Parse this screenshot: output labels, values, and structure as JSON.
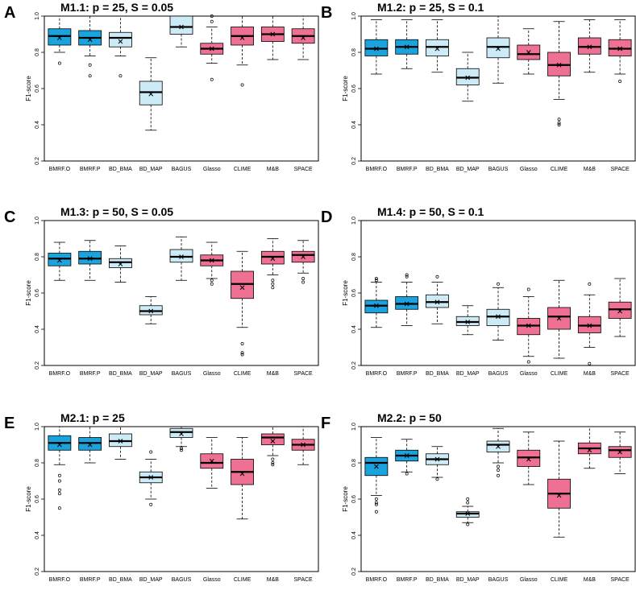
{
  "figure": {
    "colors": {
      "dark_blue": "#1BA3DE",
      "light_blue": "#CDEBF7",
      "pink": "#EE7193",
      "stroke": "#000000",
      "background": "#ffffff"
    },
    "box_color_keys": [
      "dark_blue",
      "dark_blue",
      "light_blue",
      "light_blue",
      "light_blue",
      "pink",
      "pink",
      "pink",
      "pink"
    ]
  },
  "chart_data": [
    {
      "panel": "A",
      "title": "M1.1: p = 25, S = 0.05",
      "type": "boxplot",
      "ylabel": "F1-score",
      "ylim": [
        0.2,
        1.0
      ],
      "yticks": [
        "0.2",
        "0.4",
        "0.6",
        "0.8",
        "1.0"
      ],
      "categories": [
        "BMRF.O",
        "BMRF.P",
        "BD_BMA",
        "BD_MAP",
        "BAGUS",
        "Glasso",
        "CLIME",
        "M&B",
        "SPACE"
      ],
      "boxes": [
        {
          "lw": 0.8,
          "q1": 0.84,
          "median": 0.89,
          "q3": 0.93,
          "uw": 1.0,
          "mean": 0.88,
          "outliers": [
            0.74
          ]
        },
        {
          "lw": 0.78,
          "q1": 0.84,
          "median": 0.88,
          "q3": 0.92,
          "uw": 1.0,
          "mean": 0.87,
          "outliers": [
            0.73,
            0.67
          ]
        },
        {
          "lw": 0.78,
          "q1": 0.83,
          "median": 0.88,
          "q3": 0.91,
          "uw": 1.0,
          "mean": 0.86,
          "outliers": [
            0.67
          ]
        },
        {
          "lw": 0.37,
          "q1": 0.51,
          "median": 0.58,
          "q3": 0.64,
          "uw": 0.77,
          "mean": 0.57,
          "outliers": []
        },
        {
          "lw": 0.83,
          "q1": 0.9,
          "median": 0.94,
          "q3": 1.0,
          "uw": 1.0,
          "mean": 0.94,
          "outliers": []
        },
        {
          "lw": 0.74,
          "q1": 0.79,
          "median": 0.82,
          "q3": 0.85,
          "uw": 0.94,
          "mean": 0.82,
          "outliers": [
            0.97,
            1.0,
            0.65
          ]
        },
        {
          "lw": 0.73,
          "q1": 0.84,
          "median": 0.89,
          "q3": 0.94,
          "uw": 1.0,
          "mean": 0.88,
          "outliers": [
            0.62
          ]
        },
        {
          "lw": 0.76,
          "q1": 0.86,
          "median": 0.9,
          "q3": 0.94,
          "uw": 1.0,
          "mean": 0.9,
          "outliers": []
        },
        {
          "lw": 0.76,
          "q1": 0.85,
          "median": 0.89,
          "q3": 0.93,
          "uw": 1.0,
          "mean": 0.88,
          "outliers": []
        }
      ]
    },
    {
      "panel": "B",
      "title": "M1.2: p = 25, S = 0.1",
      "type": "boxplot",
      "ylabel": "F1-score",
      "ylim": [
        0.2,
        1.0
      ],
      "yticks": [
        "0.2",
        "0.4",
        "0.6",
        "0.8",
        "1.0"
      ],
      "categories": [
        "BMRF.O",
        "BMRF.P",
        "BD_BMA",
        "BD_MAP",
        "BAGUS",
        "Glasso",
        "CLIME",
        "M&B",
        "SPACE"
      ],
      "boxes": [
        {
          "lw": 0.68,
          "q1": 0.78,
          "median": 0.82,
          "q3": 0.87,
          "uw": 0.98,
          "mean": 0.82,
          "outliers": []
        },
        {
          "lw": 0.71,
          "q1": 0.79,
          "median": 0.83,
          "q3": 0.87,
          "uw": 0.98,
          "mean": 0.83,
          "outliers": []
        },
        {
          "lw": 0.69,
          "q1": 0.78,
          "median": 0.83,
          "q3": 0.87,
          "uw": 0.98,
          "mean": 0.82,
          "outliers": []
        },
        {
          "lw": 0.53,
          "q1": 0.62,
          "median": 0.66,
          "q3": 0.71,
          "uw": 0.8,
          "mean": 0.66,
          "outliers": []
        },
        {
          "lw": 0.63,
          "q1": 0.77,
          "median": 0.83,
          "q3": 0.88,
          "uw": 1.0,
          "mean": 0.82,
          "outliers": []
        },
        {
          "lw": 0.68,
          "q1": 0.76,
          "median": 0.79,
          "q3": 0.84,
          "uw": 0.93,
          "mean": 0.8,
          "outliers": []
        },
        {
          "lw": 0.54,
          "q1": 0.67,
          "median": 0.73,
          "q3": 0.8,
          "uw": 0.97,
          "mean": 0.73,
          "outliers": [
            0.43,
            0.41,
            0.4
          ]
        },
        {
          "lw": 0.69,
          "q1": 0.79,
          "median": 0.83,
          "q3": 0.88,
          "uw": 0.98,
          "mean": 0.83,
          "outliers": []
        },
        {
          "lw": 0.68,
          "q1": 0.78,
          "median": 0.82,
          "q3": 0.87,
          "uw": 0.98,
          "mean": 0.82,
          "outliers": [
            0.64
          ]
        }
      ]
    },
    {
      "panel": "C",
      "title": "M1.3: p = 50, S = 0.05",
      "type": "boxplot",
      "ylabel": "F1-score",
      "ylim": [
        0.2,
        1.0
      ],
      "yticks": [
        "0.2",
        "0.4",
        "0.6",
        "0.8",
        "1.0"
      ],
      "categories": [
        "BMRF.O",
        "BMRF.P",
        "BD_BMA",
        "BD_MAP",
        "BAGUS",
        "Glasso",
        "CLIME",
        "M&B",
        "SPACE"
      ],
      "boxes": [
        {
          "lw": 0.67,
          "q1": 0.75,
          "median": 0.79,
          "q3": 0.82,
          "uw": 0.88,
          "mean": 0.78,
          "outliers": []
        },
        {
          "lw": 0.67,
          "q1": 0.76,
          "median": 0.79,
          "q3": 0.83,
          "uw": 0.89,
          "mean": 0.79,
          "outliers": []
        },
        {
          "lw": 0.66,
          "q1": 0.74,
          "median": 0.77,
          "q3": 0.79,
          "uw": 0.86,
          "mean": 0.76,
          "outliers": []
        },
        {
          "lw": 0.43,
          "q1": 0.48,
          "median": 0.5,
          "q3": 0.53,
          "uw": 0.58,
          "mean": 0.5,
          "outliers": []
        },
        {
          "lw": 0.67,
          "q1": 0.77,
          "median": 0.8,
          "q3": 0.84,
          "uw": 0.91,
          "mean": 0.8,
          "outliers": []
        },
        {
          "lw": 0.68,
          "q1": 0.75,
          "median": 0.78,
          "q3": 0.81,
          "uw": 0.88,
          "mean": 0.78,
          "outliers": [
            0.67,
            0.65
          ]
        },
        {
          "lw": 0.41,
          "q1": 0.57,
          "median": 0.65,
          "q3": 0.72,
          "uw": 0.83,
          "mean": 0.63,
          "outliers": [
            0.32,
            0.27,
            0.26
          ]
        },
        {
          "lw": 0.7,
          "q1": 0.76,
          "median": 0.8,
          "q3": 0.83,
          "uw": 0.9,
          "mean": 0.79,
          "outliers": [
            0.67,
            0.65,
            0.63
          ]
        },
        {
          "lw": 0.71,
          "q1": 0.77,
          "median": 0.81,
          "q3": 0.83,
          "uw": 0.89,
          "mean": 0.8,
          "outliers": [
            0.68,
            0.66
          ]
        }
      ]
    },
    {
      "panel": "D",
      "title": "M1.4: p = 50, S = 0.1",
      "type": "boxplot",
      "ylabel": "F1-score",
      "ylim": [
        0.2,
        1.0
      ],
      "yticks": [
        "0.2",
        "0.4",
        "0.6",
        "0.8",
        "1.0"
      ],
      "categories": [
        "BMRF.O",
        "BMRF.P",
        "BD_BMA",
        "BD_MAP",
        "BAGUS",
        "Glasso",
        "CLIME",
        "M&B",
        "SPACE"
      ],
      "boxes": [
        {
          "lw": 0.41,
          "q1": 0.49,
          "median": 0.53,
          "q3": 0.56,
          "uw": 0.66,
          "mean": 0.53,
          "outliers": [
            0.68,
            0.67
          ]
        },
        {
          "lw": 0.42,
          "q1": 0.51,
          "median": 0.54,
          "q3": 0.58,
          "uw": 0.66,
          "mean": 0.54,
          "outliers": [
            0.7,
            0.69
          ]
        },
        {
          "lw": 0.43,
          "q1": 0.52,
          "median": 0.55,
          "q3": 0.59,
          "uw": 0.66,
          "mean": 0.55,
          "outliers": [
            0.69
          ]
        },
        {
          "lw": 0.37,
          "q1": 0.42,
          "median": 0.44,
          "q3": 0.47,
          "uw": 0.53,
          "mean": 0.44,
          "outliers": []
        },
        {
          "lw": 0.34,
          "q1": 0.42,
          "median": 0.47,
          "q3": 0.51,
          "uw": 0.63,
          "mean": 0.47,
          "outliers": [
            0.65
          ]
        },
        {
          "lw": 0.25,
          "q1": 0.37,
          "median": 0.42,
          "q3": 0.46,
          "uw": 0.58,
          "mean": 0.42,
          "outliers": [
            0.62,
            0.22
          ]
        },
        {
          "lw": 0.24,
          "q1": 0.4,
          "median": 0.47,
          "q3": 0.52,
          "uw": 0.67,
          "mean": 0.46,
          "outliers": []
        },
        {
          "lw": 0.3,
          "q1": 0.38,
          "median": 0.42,
          "q3": 0.47,
          "uw": 0.59,
          "mean": 0.42,
          "outliers": [
            0.65,
            0.21
          ]
        },
        {
          "lw": 0.36,
          "q1": 0.46,
          "median": 0.51,
          "q3": 0.55,
          "uw": 0.68,
          "mean": 0.5,
          "outliers": []
        }
      ]
    },
    {
      "panel": "E",
      "title": "M2.1: p = 25",
      "type": "boxplot",
      "ylabel": "F1-score",
      "ylim": [
        0.2,
        1.0
      ],
      "yticks": [
        "0.2",
        "0.4",
        "0.6",
        "0.8",
        "1.0"
      ],
      "categories": [
        "BMRF.O",
        "BMRF.P",
        "BD_BMA",
        "BD_MAP",
        "BAGUS",
        "Glasso",
        "CLIME",
        "M&B",
        "SPACE"
      ],
      "boxes": [
        {
          "lw": 0.79,
          "q1": 0.87,
          "median": 0.91,
          "q3": 0.95,
          "uw": 1.0,
          "mean": 0.9,
          "outliers": [
            0.73,
            0.7,
            0.65,
            0.63,
            0.55
          ]
        },
        {
          "lw": 0.8,
          "q1": 0.87,
          "median": 0.91,
          "q3": 0.94,
          "uw": 1.0,
          "mean": 0.9,
          "outliers": []
        },
        {
          "lw": 0.82,
          "q1": 0.89,
          "median": 0.92,
          "q3": 0.96,
          "uw": 1.0,
          "mean": 0.92,
          "outliers": []
        },
        {
          "lw": 0.6,
          "q1": 0.69,
          "median": 0.72,
          "q3": 0.75,
          "uw": 0.82,
          "mean": 0.72,
          "outliers": [
            0.86,
            0.57
          ]
        },
        {
          "lw": 0.89,
          "q1": 0.94,
          "median": 0.97,
          "q3": 0.99,
          "uw": 1.0,
          "mean": 0.96,
          "outliers": [
            0.88,
            0.87
          ]
        },
        {
          "lw": 0.66,
          "q1": 0.77,
          "median": 0.8,
          "q3": 0.85,
          "uw": 0.94,
          "mean": 0.81,
          "outliers": []
        },
        {
          "lw": 0.49,
          "q1": 0.68,
          "median": 0.75,
          "q3": 0.82,
          "uw": 0.94,
          "mean": 0.74,
          "outliers": []
        },
        {
          "lw": 0.84,
          "q1": 0.9,
          "median": 0.94,
          "q3": 0.96,
          "uw": 1.0,
          "mean": 0.92,
          "outliers": [
            0.82,
            0.8,
            0.79
          ]
        },
        {
          "lw": 0.79,
          "q1": 0.87,
          "median": 0.9,
          "q3": 0.93,
          "uw": 1.0,
          "mean": 0.9,
          "outliers": []
        }
      ]
    },
    {
      "panel": "F",
      "title": "M2.2: p = 50",
      "type": "boxplot",
      "ylabel": "F1-score",
      "ylim": [
        0.2,
        1.0
      ],
      "yticks": [
        "0.2",
        "0.4",
        "0.6",
        "0.8",
        "1.0"
      ],
      "categories": [
        "BMRF.O",
        "BMRF.P",
        "BD_BMA",
        "BD_MAP",
        "BAGUS",
        "Glasso",
        "CLIME",
        "M&B",
        "SPACE"
      ],
      "boxes": [
        {
          "lw": 0.62,
          "q1": 0.73,
          "median": 0.8,
          "q3": 0.83,
          "uw": 0.94,
          "mean": 0.78,
          "outliers": [
            0.6,
            0.58,
            0.57,
            0.53
          ]
        },
        {
          "lw": 0.75,
          "q1": 0.81,
          "median": 0.84,
          "q3": 0.87,
          "uw": 0.93,
          "mean": 0.84,
          "outliers": [
            0.74
          ]
        },
        {
          "lw": 0.72,
          "q1": 0.79,
          "median": 0.82,
          "q3": 0.85,
          "uw": 0.89,
          "mean": 0.82,
          "outliers": [
            0.71
          ]
        },
        {
          "lw": 0.47,
          "q1": 0.5,
          "median": 0.52,
          "q3": 0.53,
          "uw": 0.56,
          "mean": 0.52,
          "outliers": [
            0.6,
            0.58,
            0.46
          ]
        },
        {
          "lw": 0.8,
          "q1": 0.86,
          "median": 0.9,
          "q3": 0.92,
          "uw": 0.99,
          "mean": 0.89,
          "outliers": [
            0.78,
            0.76,
            0.73
          ]
        },
        {
          "lw": 0.68,
          "q1": 0.78,
          "median": 0.83,
          "q3": 0.87,
          "uw": 0.97,
          "mean": 0.82,
          "outliers": []
        },
        {
          "lw": 0.39,
          "q1": 0.55,
          "median": 0.63,
          "q3": 0.71,
          "uw": 0.92,
          "mean": 0.62,
          "outliers": []
        },
        {
          "lw": 0.77,
          "q1": 0.85,
          "median": 0.88,
          "q3": 0.91,
          "uw": 1.0,
          "mean": 0.87,
          "outliers": []
        },
        {
          "lw": 0.74,
          "q1": 0.83,
          "median": 0.87,
          "q3": 0.89,
          "uw": 0.97,
          "mean": 0.86,
          "outliers": []
        }
      ]
    }
  ]
}
